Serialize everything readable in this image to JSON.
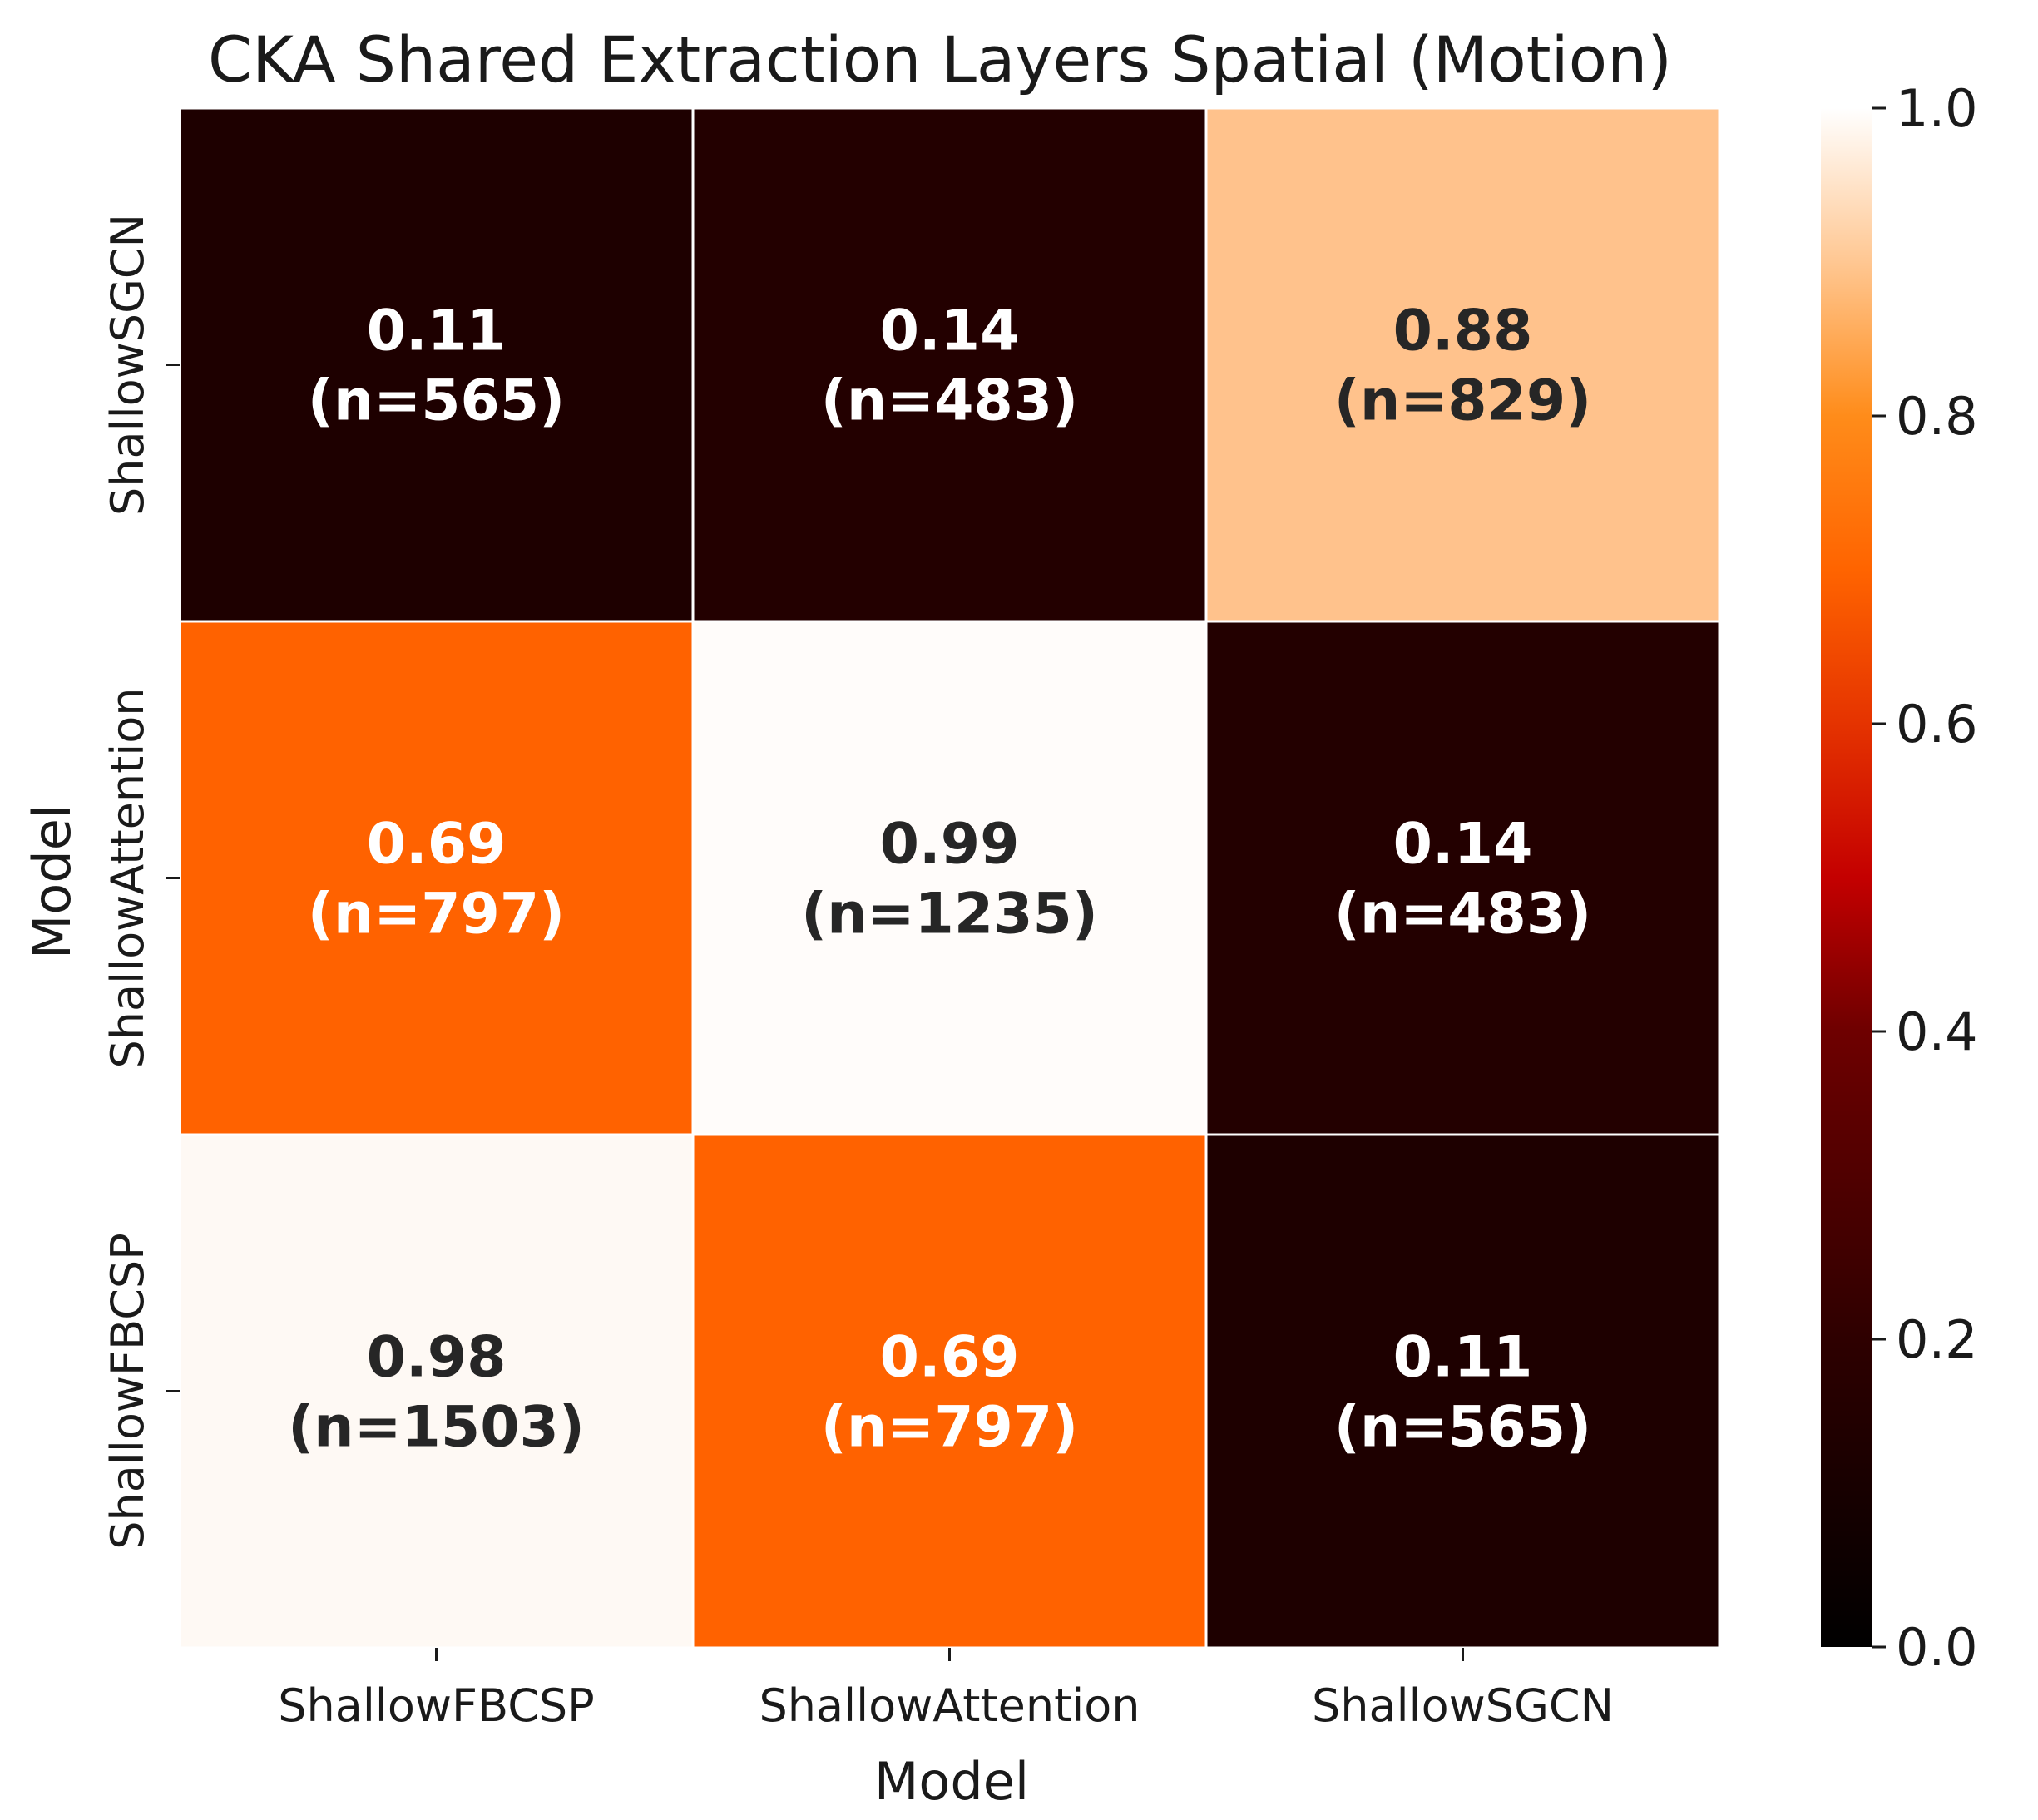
{
  "chart_data": {
    "type": "heatmap",
    "title": "CKA Shared Extraction Layers Spatial (Motion)",
    "xlabel": "Model",
    "ylabel": "Model",
    "x_categories": [
      "ShallowFBCSP",
      "ShallowAttention",
      "ShallowSGCN"
    ],
    "y_categories": [
      "ShallowSGCN",
      "ShallowAttention",
      "ShallowFBCSP"
    ],
    "values": [
      [
        0.11,
        0.14,
        0.88
      ],
      [
        0.69,
        0.99,
        0.14
      ],
      [
        0.98,
        0.69,
        0.11
      ]
    ],
    "counts": [
      [
        "(n=565)",
        "(n=483)",
        "(n=829)"
      ],
      [
        "(n=797)",
        "(n=1235)",
        "(n=483)"
      ],
      [
        "(n=1503)",
        "(n=797)",
        "(n=565)"
      ]
    ],
    "value_labels": [
      [
        "0.11",
        "0.14",
        "0.88"
      ],
      [
        "0.69",
        "0.99",
        "0.14"
      ],
      [
        "0.98",
        "0.69",
        "0.11"
      ]
    ],
    "colorbar": {
      "colormap": "gist_heat",
      "range": [
        0.0,
        1.0
      ],
      "ticks": [
        "0.0",
        "0.2",
        "0.4",
        "0.6",
        "0.8",
        "1.0"
      ]
    },
    "grid": false
  }
}
